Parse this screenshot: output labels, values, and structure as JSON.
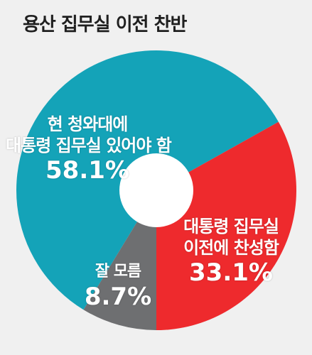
{
  "chart_data": {
    "type": "pie",
    "title": "용산 집무실 이전 찬반",
    "donut": true,
    "categories": [
      "현 청와대에 대통령 집무실 있어야 함",
      "대통령 집무실 이전에 찬성함",
      "잘 모름"
    ],
    "label_lines": [
      [
        "현 청와대에",
        "대통령 집무실 있어야 함"
      ],
      [
        "대통령 집무실",
        "이전에 찬성함"
      ],
      [
        "잘 모름"
      ]
    ],
    "values": [
      58.1,
      33.1,
      8.7
    ],
    "value_labels": [
      "58.1%",
      "33.1%",
      "8.7%"
    ],
    "colors": [
      "#14a3b8",
      "#ee2a2d",
      "#6e6f71"
    ]
  }
}
